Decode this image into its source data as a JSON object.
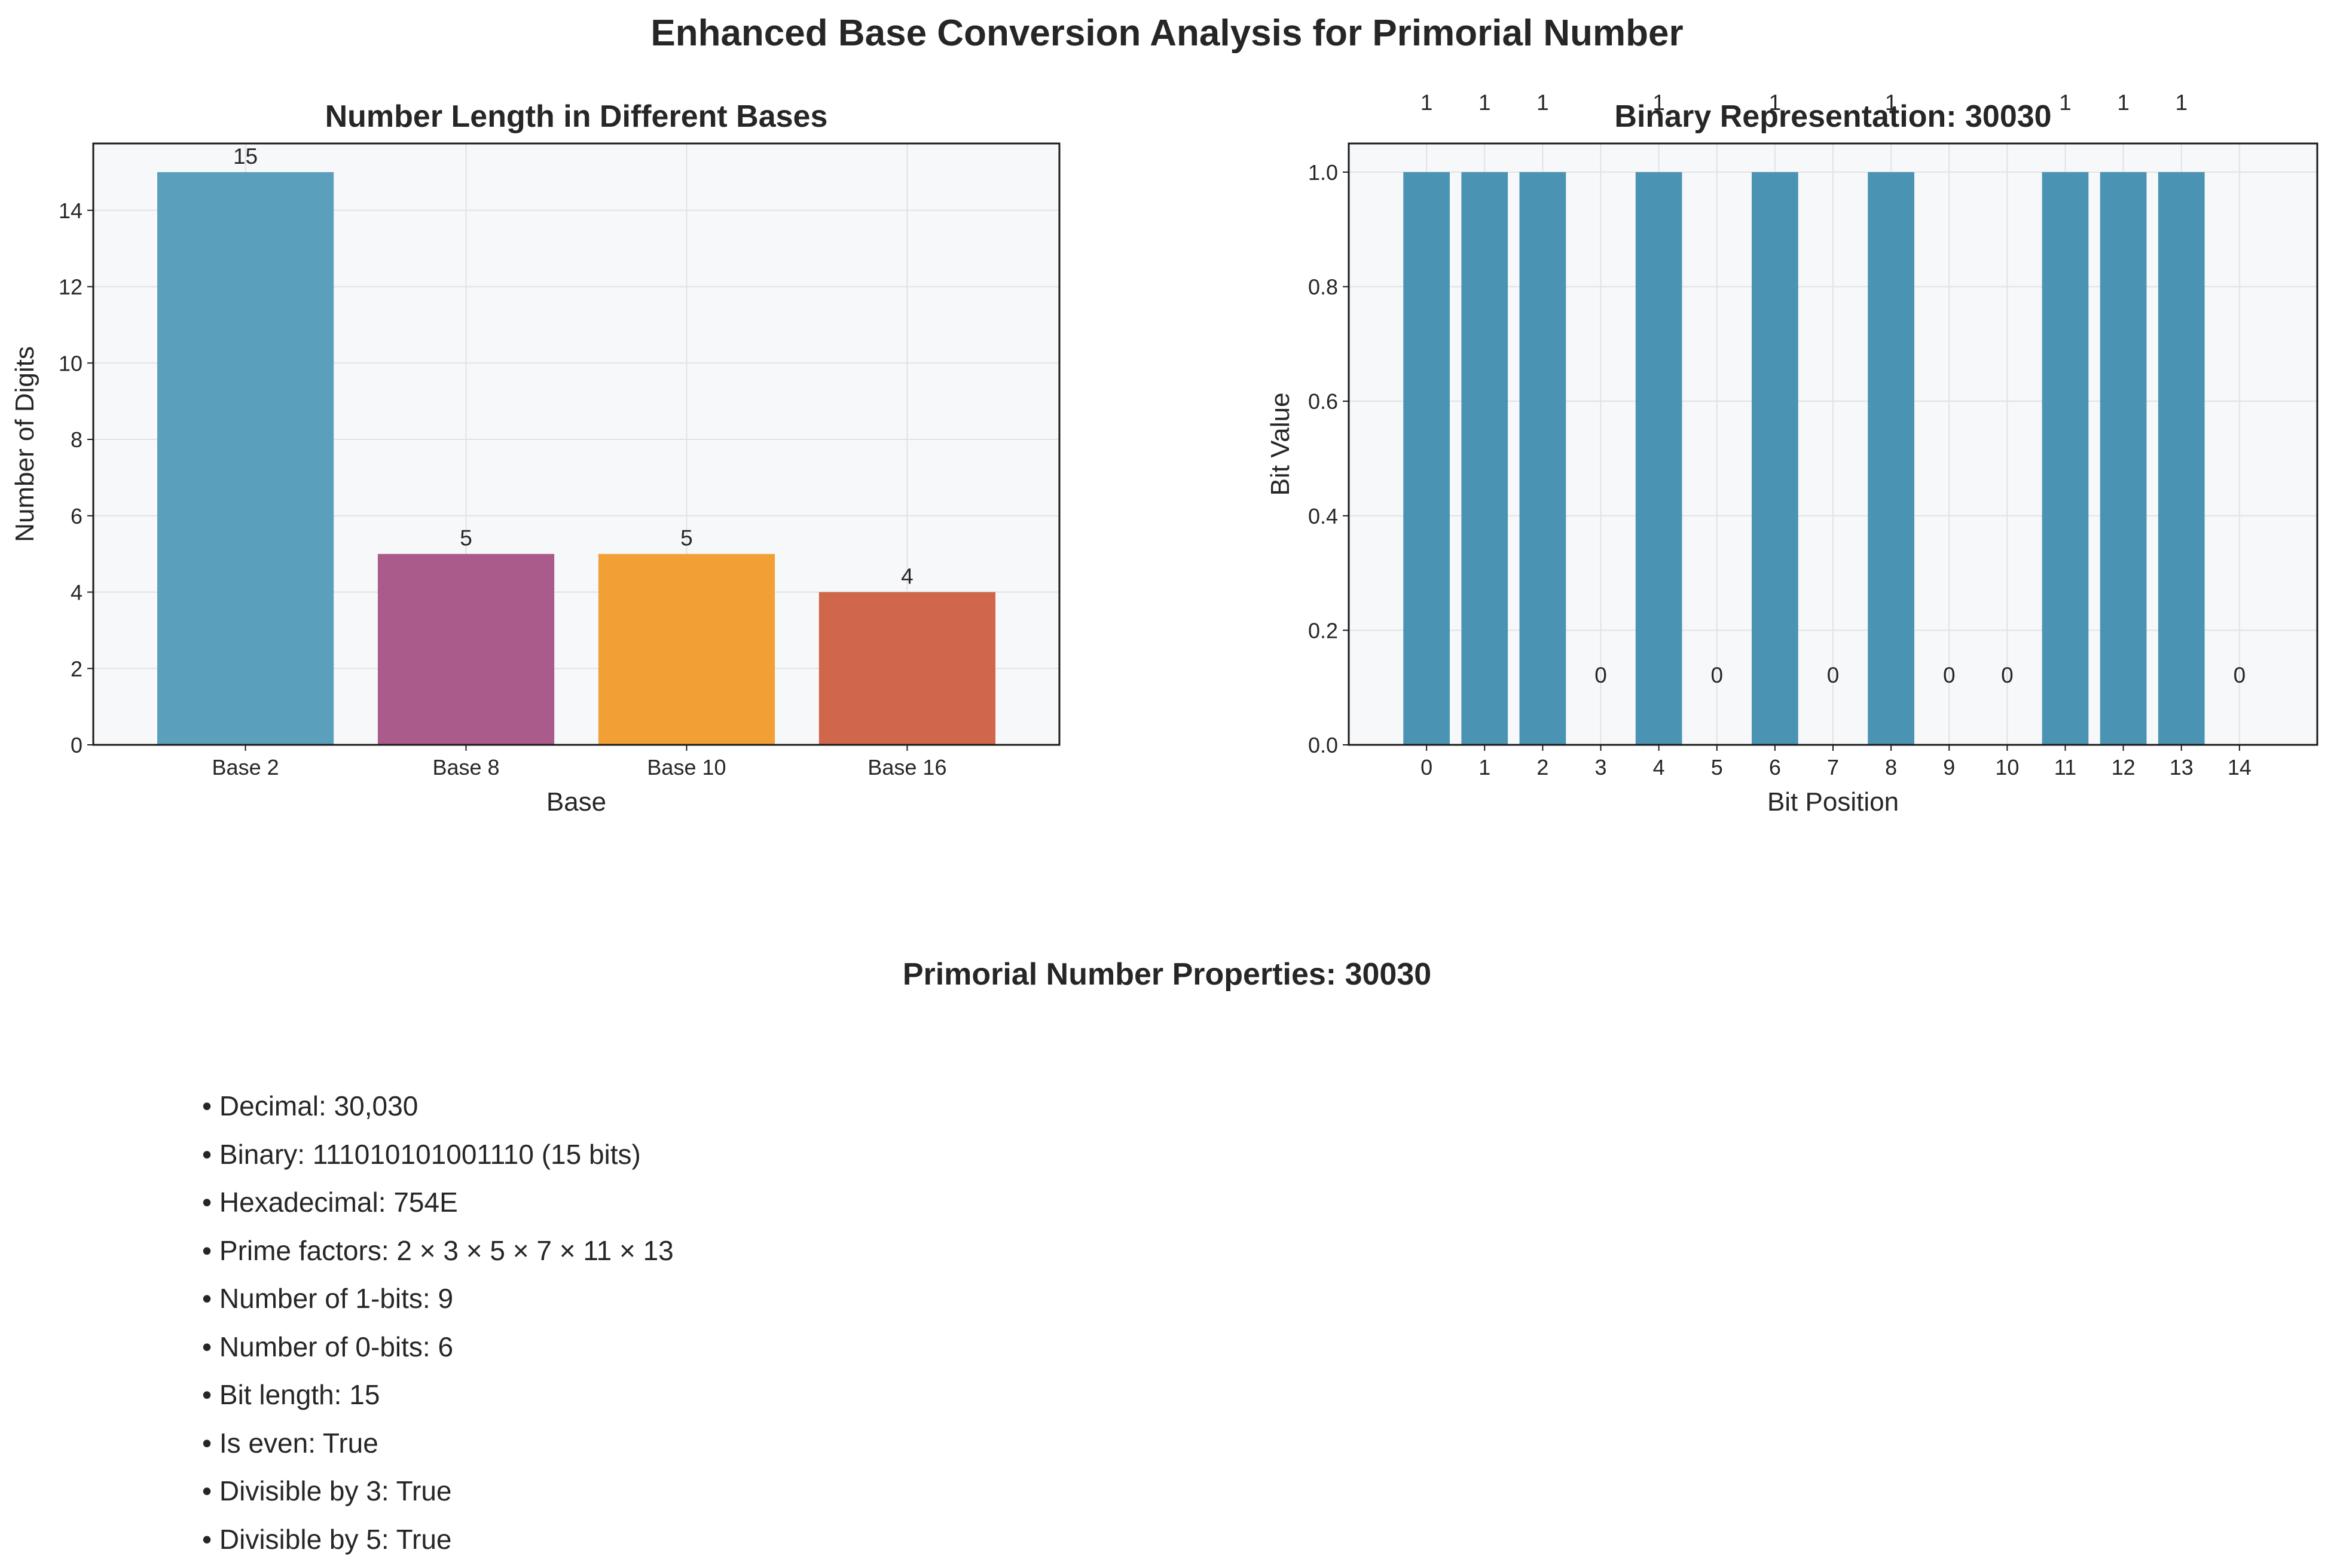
{
  "figure": {
    "suptitle": "Enhanced Base Conversion Analysis for Primorial Number"
  },
  "chart_data": [
    {
      "type": "bar",
      "title": "Number Length in Different Bases",
      "xlabel": "Base",
      "ylabel": "Number of Digits",
      "categories": [
        "Base 2",
        "Base 8",
        "Base 10",
        "Base 16"
      ],
      "values": [
        15,
        5,
        5,
        4
      ],
      "data_labels": [
        "15",
        "5",
        "5",
        "4"
      ],
      "colors": [
        "#5a9fbb",
        "#ab5a8c",
        "#f2a035",
        "#d0664a"
      ],
      "ylim": [
        0,
        15.75
      ],
      "yticks": [
        0,
        2,
        4,
        6,
        8,
        10,
        12,
        14
      ],
      "grid": true
    },
    {
      "type": "bar",
      "title": "Binary Representation: 30030",
      "xlabel": "Bit Position",
      "ylabel": "Bit Value",
      "categories": [
        "0",
        "1",
        "2",
        "3",
        "4",
        "5",
        "6",
        "7",
        "8",
        "9",
        "10",
        "11",
        "12",
        "13",
        "14"
      ],
      "values": [
        1,
        1,
        1,
        0,
        1,
        0,
        1,
        0,
        1,
        0,
        0,
        1,
        1,
        1,
        0
      ],
      "data_labels": [
        "1",
        "1",
        "1",
        "0",
        "1",
        "0",
        "1",
        "0",
        "1",
        "0",
        "0",
        "1",
        "1",
        "1",
        "0"
      ],
      "colors": [
        "#4a93b3"
      ],
      "ylim": [
        0,
        1.05
      ],
      "yticks": [
        0.0,
        0.2,
        0.4,
        0.6,
        0.8,
        1.0
      ],
      "ytick_labels": [
        "0.0",
        "0.2",
        "0.4",
        "0.6",
        "0.8",
        "1.0"
      ],
      "grid": true
    }
  ],
  "properties": {
    "title": "Primorial Number Properties: 30030",
    "items": [
      "• Decimal: 30,030",
      "• Binary: 111010101001110 (15 bits)",
      "• Hexadecimal: 754E",
      "• Prime factors: 2 × 3 × 5 × 7 × 11 × 13",
      "• Number of 1-bits: 9",
      "• Number of 0-bits: 6",
      "• Bit length: 15",
      "• Is even: True",
      "• Divisible by 3: True",
      "• Divisible by 5: True"
    ]
  }
}
